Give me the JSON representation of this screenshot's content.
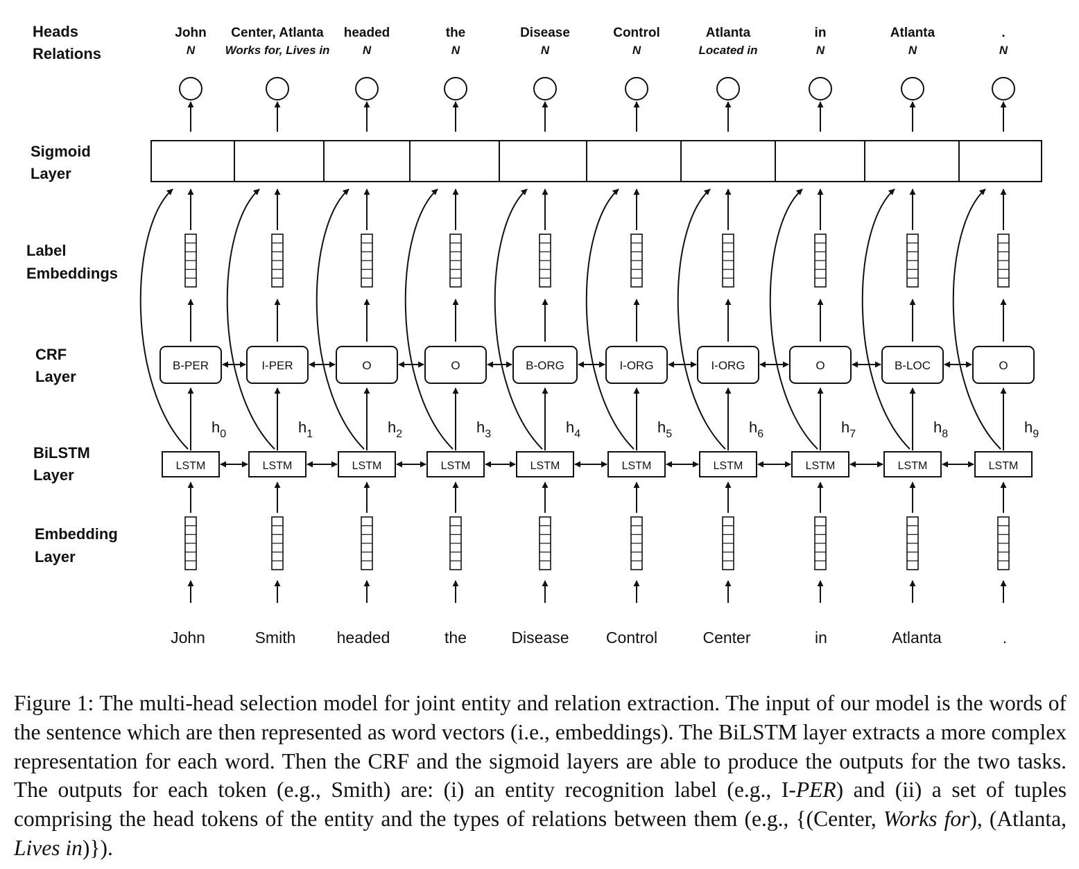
{
  "row_labels": {
    "heads": "Heads",
    "relations": "Relations",
    "sigmoid": [
      "Sigmoid",
      "Layer"
    ],
    "label_emb": [
      "Label",
      "Embeddings"
    ],
    "crf": [
      "CRF",
      "Layer"
    ],
    "bilstm": [
      "BiLSTM",
      "Layer"
    ],
    "embedding": [
      "Embedding",
      "Layer"
    ]
  },
  "tokens": [
    {
      "word": "John",
      "head": "John",
      "relation": "N",
      "crf": "B-PER",
      "hidden": "0",
      "lstm": "LSTM"
    },
    {
      "word": "Smith",
      "head": "Center, Atlanta",
      "relation": "Works for, Lives in",
      "crf": "I-PER",
      "hidden": "1",
      "lstm": "LSTM"
    },
    {
      "word": "headed",
      "head": "headed",
      "relation": "N",
      "crf": "O",
      "hidden": "2",
      "lstm": "LSTM"
    },
    {
      "word": "the",
      "head": "the",
      "relation": "N",
      "crf": "O",
      "hidden": "3",
      "lstm": "LSTM"
    },
    {
      "word": "Disease",
      "head": "Disease",
      "relation": "N",
      "crf": "B-ORG",
      "hidden": "4",
      "lstm": "LSTM"
    },
    {
      "word": "Control",
      "head": "Control",
      "relation": "N",
      "crf": "I-ORG",
      "hidden": "5",
      "lstm": "LSTM"
    },
    {
      "word": "Center",
      "head": "Atlanta",
      "relation": "Located in",
      "crf": "I-ORG",
      "hidden": "6",
      "lstm": "LSTM"
    },
    {
      "word": "in",
      "head": "in",
      "relation": "N",
      "crf": "O",
      "hidden": "7",
      "lstm": "LSTM"
    },
    {
      "word": "Atlanta",
      "head": "Atlanta",
      "relation": "N",
      "crf": "B-LOC",
      "hidden": "8",
      "lstm": "LSTM"
    },
    {
      "word": ".",
      "head": ".",
      "relation": "N",
      "crf": "O",
      "hidden": "9",
      "lstm": "LSTM"
    }
  ],
  "hidden_prefix": "h",
  "caption": {
    "p1": "Figure 1: The multi-head selection model for joint entity and relation extraction. The input of our model is the words of the sentence which are then represented as word vectors (i.e., embeddings). The BiLSTM layer extracts a more complex representation for each word. Then the CRF and the sigmoid layers are able to produce the outputs for the two tasks. The outputs for each token (e.g., Smith) are: (i) an entity recognition label (e.g., I-",
    "per": "PER",
    "p2": ") and (ii) a set of tuples comprising the head tokens of the entity and the types of relations between them (e.g., {(Center, ",
    "works_for": "Works for",
    "p3": "), (Atlanta, ",
    "lives_in": "Lives in",
    "p4": ")})."
  }
}
